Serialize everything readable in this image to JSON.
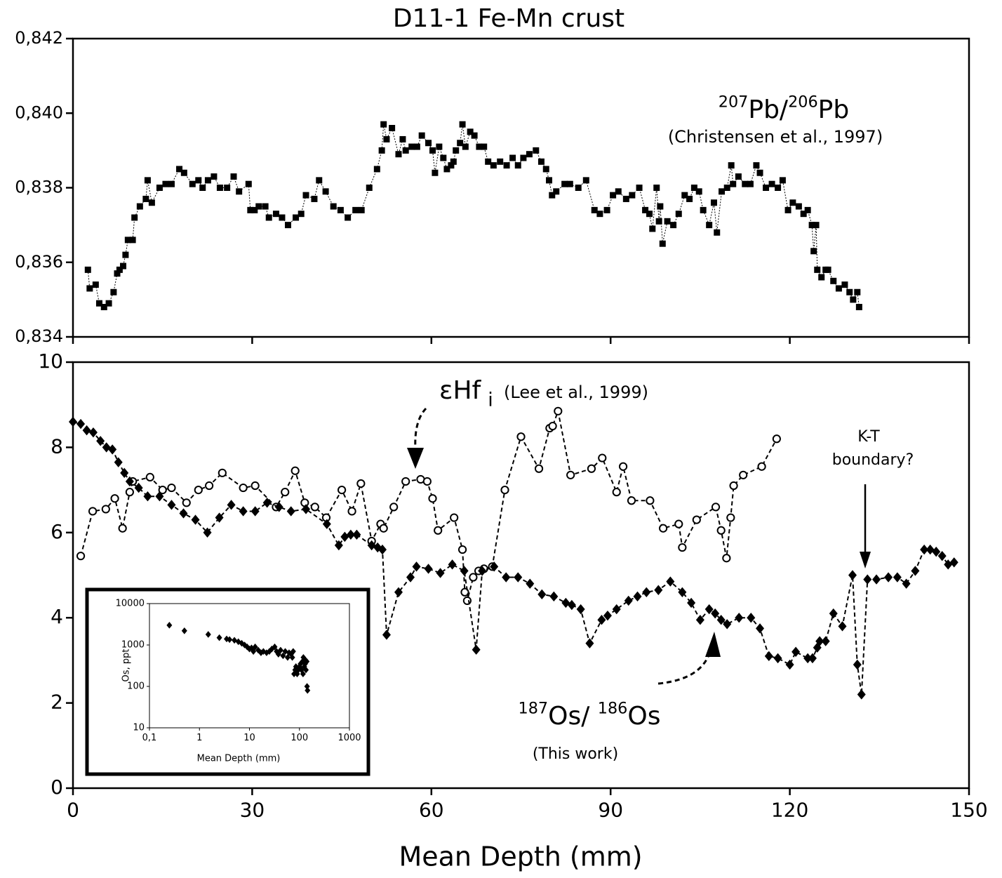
{
  "chart_data": [
    {
      "type": "line",
      "title": "D11-1 Fe-Mn crust",
      "xlim": [
        0,
        150
      ],
      "xticks": [
        0,
        30,
        60,
        90,
        120,
        150
      ],
      "xtick_labels": false,
      "ylim": [
        0.834,
        0.842
      ],
      "yticks": [
        {
          "value": 0.834,
          "label": "0,834"
        },
        {
          "value": 0.836,
          "label": "0,836"
        },
        {
          "value": 0.838,
          "label": "0,838"
        },
        {
          "value": 0.84,
          "label": "0,840"
        },
        {
          "value": 0.842,
          "label": "0,842"
        }
      ],
      "annotations": [
        {
          "parts": [
            {
              "text": "207",
              "sup": true
            },
            {
              "text": "Pb/"
            },
            {
              "text": "206",
              "sup": true
            },
            {
              "text": "Pb"
            }
          ]
        },
        {
          "text": "(Christensen et al., 1997)"
        }
      ],
      "series": [
        {
          "color": "#000000",
          "marker": "square",
          "line": "dotted",
          "x": [
            2.5,
            2.8,
            3.8,
            4.4,
            5.2,
            6.0,
            6.8,
            7.4,
            7.8,
            8.4,
            8.8,
            9.2,
            10.0,
            10.3,
            11.2,
            12.2,
            12.5,
            13.2,
            14.5,
            15.5,
            16.5,
            17.8,
            18.6,
            20.0,
            21.0,
            21.7,
            22.6,
            23.6,
            24.6,
            25.8,
            26.9,
            27.8,
            29.4,
            29.7,
            30.4,
            31.1,
            32.2,
            32.8,
            34.0,
            35.0,
            36.0,
            37.3,
            38.2,
            39.0,
            40.4,
            41.2,
            42.3,
            43.6,
            44.8,
            46.0,
            47.3,
            48.3,
            49.6,
            50.9,
            51.7,
            52.0,
            52.5,
            53.4,
            54.5,
            55.2,
            55.7,
            56.7,
            57.6,
            58.4,
            59.5,
            60.2,
            60.6,
            61.3,
            62.0,
            62.6,
            63.3,
            63.7,
            64.1,
            64.8,
            65.2,
            65.7,
            66.5,
            67.2,
            68.0,
            68.8,
            69.5,
            70.4,
            71.5,
            72.6,
            73.6,
            74.5,
            75.4,
            76.4,
            77.5,
            78.4,
            79.2,
            79.7,
            80.2,
            80.9,
            82.3,
            83.2,
            84.6,
            85.9,
            87.3,
            88.2,
            89.4,
            90.4,
            91.3,
            92.6,
            93.6,
            94.8,
            95.8,
            96.5,
            97.0,
            97.7,
            98.1,
            98.3,
            98.7,
            99.5,
            100.5,
            101.4,
            102.4,
            103.2,
            104.0,
            104.8,
            105.5,
            106.5,
            107.3,
            107.8,
            108.6,
            109.5,
            110.2,
            110.5,
            111.4,
            112.5,
            113.4,
            114.4,
            115.0,
            116.0,
            117.0,
            118.0,
            118.8,
            119.7,
            120.5,
            121.5,
            122.3,
            123.0,
            123.7,
            124.0,
            124.4,
            124.6,
            125.3,
            126.0,
            126.4,
            127.3,
            128.2,
            129.2,
            130.0,
            130.6,
            131.3,
            131.6
          ],
          "values": [
            0.8358,
            0.8353,
            0.8354,
            0.8349,
            0.8348,
            0.8349,
            0.8352,
            0.8357,
            0.8358,
            0.8359,
            0.8362,
            0.8366,
            0.8366,
            0.8372,
            0.8375,
            0.8377,
            0.8382,
            0.8376,
            0.838,
            0.8381,
            0.8381,
            0.8385,
            0.8384,
            0.8381,
            0.8382,
            0.838,
            0.8382,
            0.8383,
            0.838,
            0.838,
            0.8383,
            0.8379,
            0.8381,
            0.8374,
            0.8374,
            0.8375,
            0.8375,
            0.8372,
            0.8373,
            0.8372,
            0.837,
            0.8372,
            0.8373,
            0.8378,
            0.8377,
            0.8382,
            0.8379,
            0.8375,
            0.8374,
            0.8372,
            0.8374,
            0.8374,
            0.838,
            0.8385,
            0.839,
            0.8397,
            0.8393,
            0.8396,
            0.8389,
            0.8393,
            0.839,
            0.8391,
            0.8391,
            0.8394,
            0.8392,
            0.839,
            0.8384,
            0.8391,
            0.8388,
            0.8385,
            0.8386,
            0.8387,
            0.839,
            0.8392,
            0.8397,
            0.8391,
            0.8395,
            0.8394,
            0.8391,
            0.8391,
            0.8387,
            0.8386,
            0.8387,
            0.8386,
            0.8388,
            0.8386,
            0.8388,
            0.8389,
            0.839,
            0.8387,
            0.8385,
            0.8382,
            0.8378,
            0.8379,
            0.8381,
            0.8381,
            0.838,
            0.8382,
            0.8374,
            0.8373,
            0.8374,
            0.8378,
            0.8379,
            0.8377,
            0.8378,
            0.838,
            0.8374,
            0.8373,
            0.8369,
            0.838,
            0.8371,
            0.8375,
            0.8365,
            0.8371,
            0.837,
            0.8373,
            0.8378,
            0.8377,
            0.838,
            0.8379,
            0.8374,
            0.837,
            0.8376,
            0.8368,
            0.8379,
            0.838,
            0.8386,
            0.8381,
            0.8383,
            0.8381,
            0.8381,
            0.8386,
            0.8384,
            0.838,
            0.8381,
            0.838,
            0.8382,
            0.8374,
            0.8376,
            0.8375,
            0.8373,
            0.8374,
            0.837,
            0.8363,
            0.837,
            0.8358,
            0.8356,
            0.8358,
            0.8358,
            0.8355,
            0.8353,
            0.8354,
            0.8352,
            0.835,
            0.8352,
            0.8348
          ]
        }
      ]
    },
    {
      "type": "line",
      "xlabel": "Mean Depth (mm)",
      "xlim": [
        0,
        150
      ],
      "xticks": [
        0,
        30,
        60,
        90,
        120,
        150
      ],
      "ylim": [
        0,
        10
      ],
      "yticks": [
        0,
        2,
        4,
        6,
        8,
        10
      ],
      "annotations": [
        {
          "parts": [
            {
              "text": "εHf"
            },
            {
              "text": "i",
              "sub": true
            }
          ]
        },
        {
          "text": "(Lee et al., 1999)"
        },
        {
          "text": "K-T"
        },
        {
          "text": "boundary?"
        },
        {
          "parts": [
            {
              "text": "187",
              "sup": true
            },
            {
              "text": "Os/ "
            },
            {
              "text": "186",
              "sup": true
            },
            {
              "text": "Os"
            }
          ]
        },
        {
          "text": "(This work)"
        }
      ],
      "series": [
        {
          "color": "#000000",
          "marker": "circle",
          "line": "dashed",
          "x": [
            1.3,
            3.3,
            5.5,
            7.0,
            8.3,
            9.5,
            10,
            12.9,
            15,
            16.5,
            19,
            21,
            22.8,
            25,
            28.5,
            30.5,
            34,
            35.5,
            37.2,
            38.8,
            40.5,
            42.4,
            45,
            46.7,
            48.2,
            50,
            51.5,
            52,
            53.7,
            55.7,
            58.2,
            59.3,
            60.2,
            61.1,
            63.8,
            65.2,
            65.6,
            66,
            67,
            67.9,
            68.8,
            70.2,
            72.3,
            75,
            78,
            79.8,
            80.3,
            81.2,
            83.3,
            86.8,
            88.6,
            91,
            92.1,
            93.5,
            96.6,
            98.8,
            101.4,
            102,
            104.4,
            107.6,
            108.5,
            109.4,
            110.1,
            110.6,
            112.2,
            115.3,
            117.8
          ],
          "values": [
            5.45,
            6.5,
            6.55,
            6.8,
            6.1,
            6.95,
            7.2,
            7.3,
            7.0,
            7.05,
            6.7,
            7.0,
            7.1,
            7.4,
            7.05,
            7.1,
            6.6,
            6.95,
            7.45,
            6.7,
            6.6,
            6.35,
            7.0,
            6.5,
            7.15,
            5.8,
            6.2,
            6.1,
            6.6,
            7.2,
            7.25,
            7.2,
            6.8,
            6.05,
            6.35,
            5.6,
            4.6,
            4.4,
            4.95,
            5.1,
            5.15,
            5.2,
            7.0,
            8.25,
            7.5,
            8.45,
            8.5,
            8.85,
            7.35,
            7.5,
            7.75,
            6.95,
            7.55,
            6.75,
            6.75,
            6.1,
            6.2,
            5.65,
            6.3,
            6.6,
            6.05,
            5.4,
            6.35,
            7.1,
            7.35,
            7.55,
            8.2
          ]
        },
        {
          "color": "#000000",
          "marker": "diamond",
          "line": "dashed",
          "x": [
            0,
            1.3,
            2.3,
            3.4,
            4.6,
            5.6,
            6.6,
            7.6,
            8.6,
            9.5,
            11,
            12.5,
            14.5,
            16.5,
            18.5,
            20.5,
            22.5,
            24.5,
            26.5,
            28.5,
            30.5,
            32.5,
            34.5,
            36.5,
            39,
            42.5,
            44.5,
            45.5,
            46.5,
            47.5,
            50,
            51,
            51.8,
            52.5,
            54.5,
            56.5,
            57.5,
            59.5,
            61.5,
            63.5,
            65.5,
            67.5,
            68.5,
            70.5,
            72.5,
            74.5,
            76.5,
            78.5,
            80.5,
            82.5,
            83.5,
            85,
            86.5,
            88.5,
            89.5,
            91,
            93,
            94.5,
            96,
            98,
            100,
            102,
            103.5,
            105,
            106.5,
            107.5,
            108.5,
            109.5,
            111.5,
            113.5,
            115,
            116.5,
            118,
            120,
            121,
            123,
            123.8,
            124.6,
            125,
            126,
            127.3,
            128.8,
            130.5,
            131.3,
            132,
            133,
            134.5,
            136.5,
            138,
            139.5,
            141,
            142.5,
            143.5,
            144.5,
            145.5,
            146.5,
            147.5
          ],
          "values": [
            8.6,
            8.55,
            8.4,
            8.35,
            8.15,
            8.0,
            7.95,
            7.65,
            7.4,
            7.2,
            7.05,
            6.85,
            6.85,
            6.65,
            6.45,
            6.3,
            6.0,
            6.35,
            6.65,
            6.5,
            6.5,
            6.7,
            6.6,
            6.5,
            6.55,
            6.2,
            5.7,
            5.9,
            5.95,
            5.95,
            5.7,
            5.65,
            5.6,
            3.6,
            4.6,
            4.95,
            5.2,
            5.15,
            5.05,
            5.25,
            5.1,
            3.25,
            5.1,
            5.2,
            4.95,
            4.95,
            4.8,
            4.55,
            4.5,
            4.35,
            4.3,
            4.2,
            3.4,
            3.95,
            4.05,
            4.2,
            4.4,
            4.5,
            4.6,
            4.65,
            4.85,
            4.6,
            4.35,
            3.95,
            4.2,
            4.1,
            3.95,
            3.85,
            4.0,
            4.0,
            3.75,
            3.1,
            3.05,
            2.9,
            3.2,
            3.05,
            3.05,
            3.3,
            3.45,
            3.45,
            4.1,
            3.8,
            5.0,
            2.9,
            2.2,
            4.9,
            4.9,
            4.95,
            4.95,
            4.8,
            5.1,
            5.6,
            5.6,
            5.55,
            5.45,
            5.25,
            5.3
          ]
        }
      ]
    },
    {
      "type": "scatter",
      "xlabel": "Mean Depth (mm)",
      "ylabel": "Os, ppt",
      "xlog": true,
      "ylog": true,
      "xlim": [
        0.1,
        1000
      ],
      "xticks": [
        {
          "value": 0.1,
          "label": "0,1"
        },
        1,
        10,
        100,
        1000
      ],
      "ylim": [
        10,
        10000
      ],
      "yticks": [
        10,
        100,
        1000,
        10000
      ],
      "series": [
        {
          "color": "#000000",
          "marker": "diamond",
          "x": [
            0.25,
            0.5,
            1.5,
            2.5,
            3.5,
            4,
            5,
            6,
            7,
            8,
            9,
            10,
            11,
            12,
            13,
            15,
            17,
            19,
            22,
            25,
            28,
            32,
            35,
            38,
            42,
            47,
            52,
            58,
            62,
            68,
            72,
            75,
            78,
            82,
            85,
            90,
            95,
            100,
            105,
            110,
            115,
            118,
            120,
            125,
            128,
            130,
            135,
            140,
            142,
            145
          ],
          "values": [
            3000,
            2200,
            1800,
            1500,
            1400,
            1350,
            1300,
            1200,
            1100,
            1000,
            900,
            800,
            850,
            700,
            900,
            750,
            650,
            700,
            650,
            700,
            800,
            900,
            700,
            600,
            750,
            550,
            700,
            500,
            650,
            600,
            500,
            700,
            200,
            250,
            300,
            200,
            250,
            300,
            350,
            250,
            400,
            200,
            500,
            300,
            450,
            350,
            250,
            400,
            100,
            80
          ]
        }
      ]
    }
  ]
}
